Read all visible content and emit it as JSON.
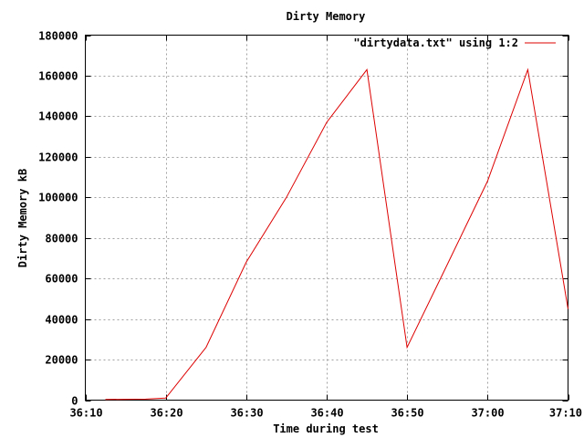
{
  "chart_data": {
    "type": "line",
    "title": "Dirty Memory",
    "xlabel": "Time during test",
    "ylabel": "Dirty Memory kB",
    "xlim": [
      36.1667,
      37.1667
    ],
    "ylim": [
      0,
      180000
    ],
    "x_ticks": [
      {
        "value": 36.1667,
        "label": "36:10"
      },
      {
        "value": 36.3333,
        "label": "36:20"
      },
      {
        "value": 36.5,
        "label": "36:30"
      },
      {
        "value": 36.6667,
        "label": "36:40"
      },
      {
        "value": 36.8333,
        "label": "36:50"
      },
      {
        "value": 37.0,
        "label": "37:00"
      },
      {
        "value": 37.1667,
        "label": "37:10"
      }
    ],
    "y_ticks": [
      0,
      20000,
      40000,
      60000,
      80000,
      100000,
      120000,
      140000,
      160000,
      180000
    ],
    "grid": true,
    "legend_position": "top-right",
    "series": [
      {
        "name": "\"dirtydata.txt\" using 1:2",
        "color": "#dd0000",
        "x": [
          36.2083,
          36.2917,
          36.3333,
          36.4167,
          36.5,
          36.5833,
          36.6667,
          36.75,
          36.8333,
          36.9167,
          37.0,
          37.0833,
          37.1667
        ],
        "y": [
          300,
          500,
          1000,
          26000,
          68000,
          100000,
          137000,
          163000,
          26000,
          67000,
          108000,
          163000,
          45000
        ]
      }
    ]
  }
}
